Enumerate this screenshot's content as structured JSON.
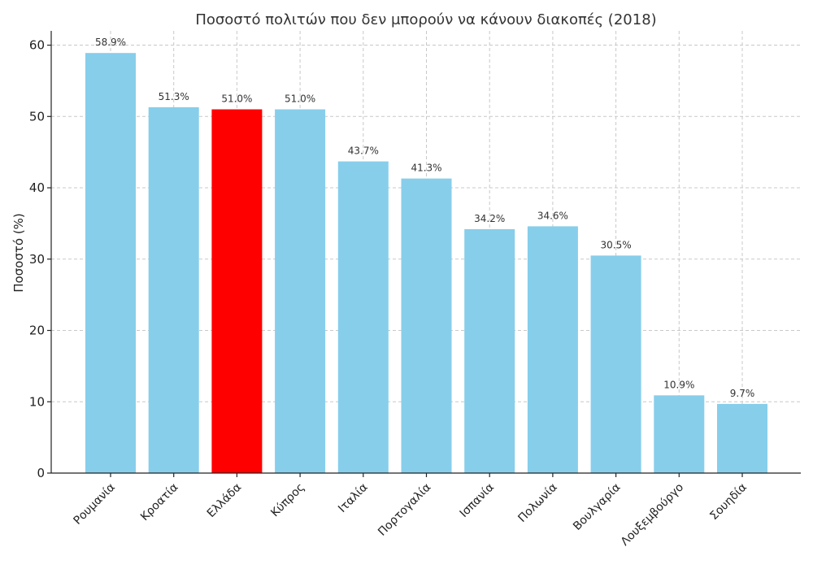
{
  "chart_data": {
    "type": "bar",
    "title": "Ποσοστό πολιτών που δεν μπορούν να κάνουν διακοπές (2018)",
    "xlabel": "",
    "ylabel": "Ποσοστό (%)",
    "ylim": [
      0,
      62
    ],
    "yticks": [
      0,
      10,
      20,
      30,
      40,
      50,
      60
    ],
    "grid": true,
    "categories": [
      "Ρουμανία",
      "Κροατία",
      "Ελλάδα",
      "Κύπρος",
      "Ιταλία",
      "Πορτογαλία",
      "Ισπανία",
      "Πολωνία",
      "Βουλγαρία",
      "Λουξεμβούργο",
      "Σουηδία"
    ],
    "values": [
      58.9,
      51.3,
      51.0,
      51.0,
      43.7,
      41.3,
      34.2,
      34.6,
      30.5,
      10.9,
      9.7
    ],
    "data_labels": [
      "58.9%",
      "51.3%",
      "51.0%",
      "51.0%",
      "43.7%",
      "41.3%",
      "34.2%",
      "34.6%",
      "30.5%",
      "10.9%",
      "9.7%"
    ],
    "colors": [
      "#87ceeb",
      "#87ceeb",
      "#ff0000",
      "#87ceeb",
      "#87ceeb",
      "#87ceeb",
      "#87ceeb",
      "#87ceeb",
      "#87ceeb",
      "#87ceeb",
      "#87ceeb"
    ]
  }
}
